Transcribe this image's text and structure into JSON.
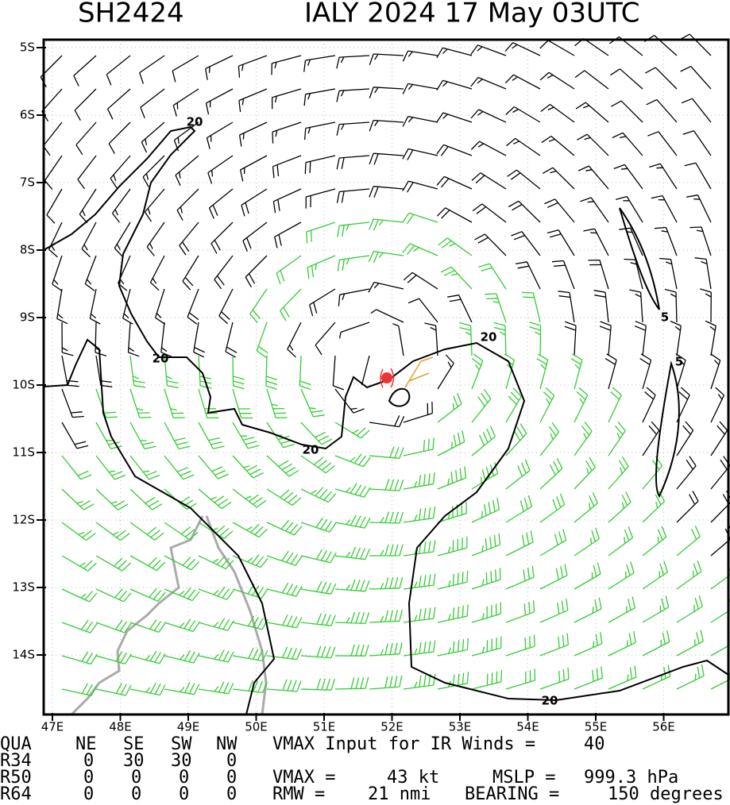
{
  "header": {
    "storm_id": "SH2424",
    "storm_time": "IALY 2024 17 May 03UTC"
  },
  "lat_labels": [
    "5S",
    "6S",
    "7S",
    "8S",
    "9S",
    "10S",
    "11S",
    "12S",
    "13S",
    "14S"
  ],
  "lon_labels": [
    "47E",
    "48E",
    "49E",
    "50E",
    "51E",
    "52E",
    "53E",
    "54E",
    "55E",
    "56E"
  ],
  "contour_labels": [
    "20",
    "20",
    "20",
    "20",
    "5",
    "5"
  ],
  "table": {
    "rows": [
      [
        "QUA",
        "NE",
        "SE",
        "SW",
        "NW",
        "VMAX Input for IR Winds =",
        "40"
      ],
      [
        "R34",
        "0",
        "30",
        "30",
        "0"
      ],
      [
        "R50",
        "0",
        "0",
        "0",
        "0",
        "VMAX =",
        "43 kt",
        "MSLP =",
        "999.3 hPa"
      ],
      [
        "R64",
        "0",
        "0",
        "0",
        "0",
        "RMW =",
        "21 nmi",
        "BEARING =",
        "150 degrees"
      ]
    ]
  }
}
